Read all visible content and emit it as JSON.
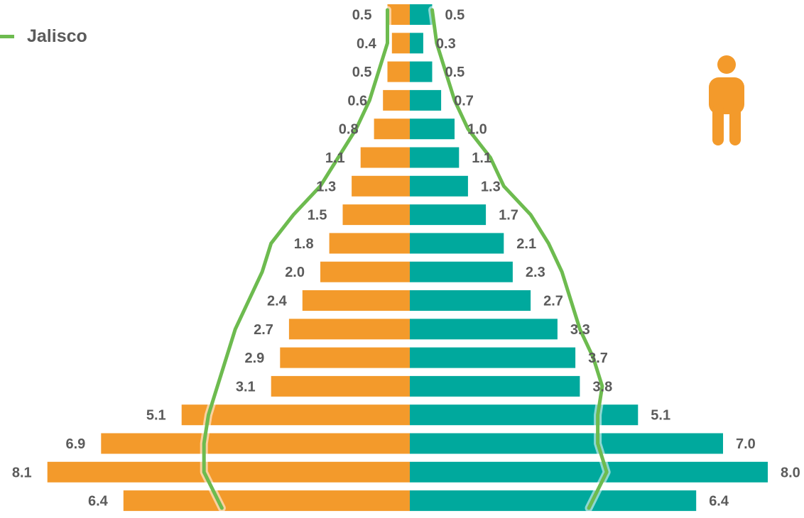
{
  "legend": {
    "label": "Jalisco"
  },
  "icon": "person-icon",
  "colors": {
    "female": "#f39a2b",
    "male": "#00a99d",
    "state_line": "#6dbb4f",
    "label": "#5b5b5b"
  },
  "chart_data": {
    "type": "bar",
    "orientation": "horizontal",
    "subtype": "population-pyramid",
    "series": [
      {
        "side": "left",
        "color": "#f39a2b",
        "values": [
          0.5,
          0.4,
          0.5,
          0.6,
          0.8,
          1.1,
          1.3,
          1.5,
          1.8,
          2.0,
          2.4,
          2.7,
          2.9,
          3.1,
          5.1,
          6.9,
          8.1,
          6.4
        ],
        "labels": [
          "0.5",
          "0.4",
          "0.5",
          "0.6",
          "0.8",
          "1.1",
          "1.3",
          "1.5",
          "1.8",
          "2.0",
          "2.4",
          "2.7",
          "2.9",
          "3.1",
          "5.1",
          "6.9",
          "8.1",
          "6.4"
        ]
      },
      {
        "side": "right",
        "color": "#00a99d",
        "values": [
          0.5,
          0.3,
          0.5,
          0.7,
          1.0,
          1.1,
          1.3,
          1.7,
          2.1,
          2.3,
          2.7,
          3.3,
          3.7,
          3.8,
          5.1,
          7.0,
          8.0,
          6.4
        ],
        "labels": [
          "0.5",
          "0.3",
          "0.5",
          "0.7",
          "1.0",
          "1.1",
          "1.3",
          "1.7",
          "2.1",
          "2.3",
          "2.7",
          "3.3",
          "3.7",
          "3.8",
          "5.1",
          "7.0",
          "8.0",
          "6.4"
        ]
      },
      {
        "name": "Jalisco",
        "type": "line",
        "color": "#6dbb4f",
        "left": [
          0.5,
          0.5,
          0.7,
          0.9,
          1.2,
          1.6,
          2.0,
          2.6,
          3.1,
          3.3,
          3.6,
          3.9,
          4.1,
          4.3,
          4.5,
          4.6,
          4.6,
          4.2
        ],
        "right": [
          0.5,
          0.6,
          0.8,
          1.0,
          1.3,
          1.8,
          2.1,
          2.7,
          3.1,
          3.4,
          3.6,
          3.8,
          4.1,
          4.3,
          4.2,
          4.2,
          4.4,
          4.0
        ]
      }
    ],
    "xlim": [
      -8.1,
      8.1
    ],
    "grid": false,
    "legend": "top-left"
  }
}
